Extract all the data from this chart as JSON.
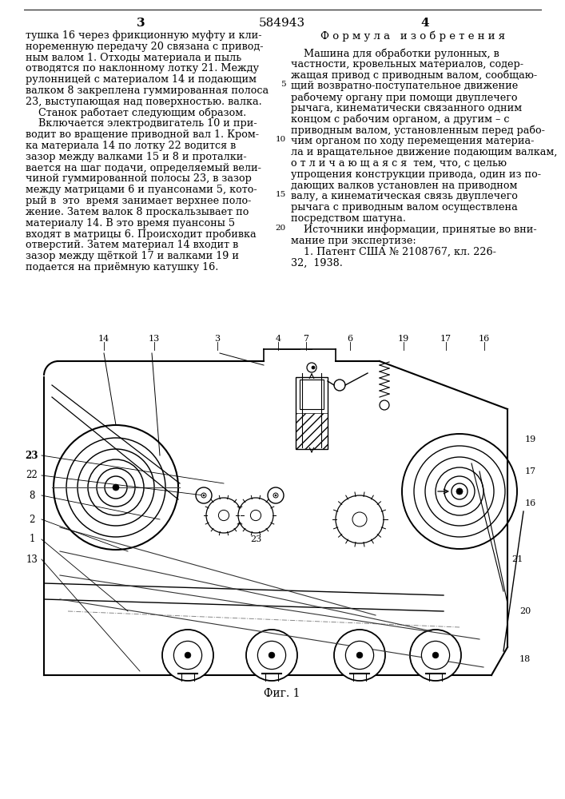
{
  "patent_number": "584943",
  "page_left_number": "3",
  "page_right_number": "4",
  "left_column_lines": [
    "тушка 16 через фрикционную муфту и кли-",
    "ноременную передачу 20 связана с привод-",
    "ным валом 1. Отходы материала и пыль",
    "отводятся по наклонному лотку 21. Между",
    "рулонницей с материалом 14 и подающим",
    "валком 8 закреплена гуммированная полоса",
    "23, выступающая над поверхностью. валка.",
    "    Станок работает следующим образом.",
    "    Включается электродвигатель 10 и при-",
    "водит во вращение приводной вал 1. Кром-",
    "ка материала 14 по лотку 22 водится в",
    "зазор между валками 15 и 8 и проталки-",
    "вается на шаг подачи, определяемый вели-",
    "чиной гуммированной полосы 23, в зазор",
    "между матрицами 6 и пуансонами 5, кото-",
    "рый в  это  время занимает верхнее поло-",
    "жение. Затем валок 8 проскальзывает по",
    "материалу 14. В это время пуансоны 5",
    "входят в матрицы 6. Происходит пробивка",
    "отверстий. Затем материал 14 входит в",
    "зазор между щёткой 17 и валками 19 и",
    "подается на приёмную катушку 16."
  ],
  "right_header": "Ф о р м у л а   и з о б р е т е н и я",
  "right_column_lines": [
    "    Машина для обработки рулонных, в",
    "частности, кровельных материалов, содер-",
    "жащая привод с приводным валом, сообщаю-",
    "щий возвратно-поступательное движение",
    "рабочему органу при помощи двуплечего",
    "рычага, кинематически связанного одним",
    "концом с рабочим органом, а другим – с",
    "приводным валом, установленным перед рабо-",
    "чим органом по ходу перемещения материа-",
    "ла и вращательное движение подающим валкам,",
    "о т л и ч а ю щ а я с я  тем, что, с целью",
    "упрощения конструкции привода, один из по-",
    "дающих валков установлен на приводном",
    "валу, а кинематическая связь двуплечего",
    "рычага с приводным валом осуществлена",
    "посредством шатуна.",
    "    Источники информации, принятые во вни-",
    "мание при экспертизе:",
    "    1. Патент США № 2108767, кл. 226-",
    "32,  1938."
  ],
  "right_line_numbers": {
    "3": "5",
    "8": "10",
    "13": "15",
    "16": "20"
  },
  "fig_caption": "Фиг. 1",
  "bg_color": "#ffffff",
  "text_color": "#000000",
  "fs": 9.2,
  "lh": 13.8
}
